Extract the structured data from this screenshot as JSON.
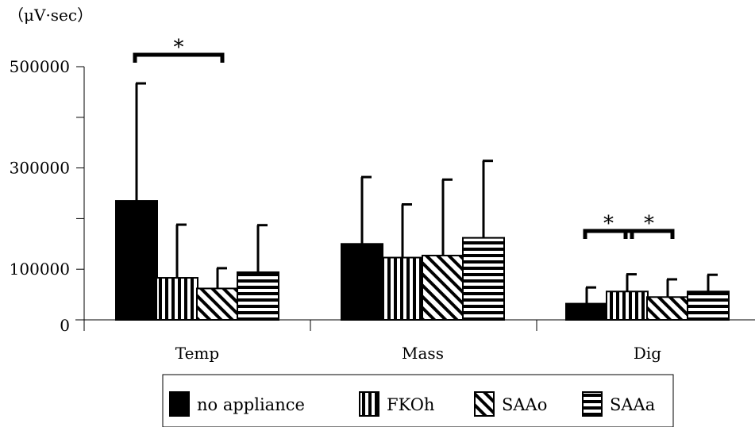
{
  "chart_data": {
    "type": "bar",
    "ylabel": "（μV·sec）",
    "yticks": [
      {
        "value": 0,
        "label": "0"
      },
      {
        "value": 100000,
        "label": "100000"
      },
      {
        "value": 200000,
        "label": ""
      },
      {
        "value": 300000,
        "label": "300000"
      },
      {
        "value": 400000,
        "label": ""
      },
      {
        "value": 500000,
        "label": "500000"
      }
    ],
    "ylim": [
      0,
      500000
    ],
    "grid": false,
    "legend_position": "bottom",
    "categories": [
      "Temp",
      "Mass",
      "Dig"
    ],
    "series": [
      {
        "name": "no appliance",
        "pattern": "solid",
        "values": [
          235000,
          150000,
          32000
        ],
        "errors": [
          232000,
          132000,
          32000
        ]
      },
      {
        "name": "FKOh",
        "pattern": "vertical",
        "values": [
          83000,
          123000,
          56000
        ],
        "errors": [
          105000,
          105000,
          34000
        ]
      },
      {
        "name": "SAAo",
        "pattern": "diagonal",
        "values": [
          62000,
          127000,
          45000
        ],
        "errors": [
          40000,
          150000,
          35000
        ]
      },
      {
        "name": "SAAa",
        "pattern": "horizontal",
        "values": [
          94000,
          162000,
          56000
        ],
        "errors": [
          93000,
          152000,
          33000
        ]
      }
    ],
    "annotations": [
      {
        "text": "*",
        "category": "Temp",
        "from_series": 0,
        "to_series": 2
      },
      {
        "text": "*",
        "category": "Dig",
        "from_series": 0,
        "to_series": 1
      },
      {
        "text": "*",
        "category": "Dig",
        "from_series": 1,
        "to_series": 2
      }
    ]
  },
  "colors": {
    "bar_fill": "#000000",
    "pattern_bg": "#ffffff"
  }
}
